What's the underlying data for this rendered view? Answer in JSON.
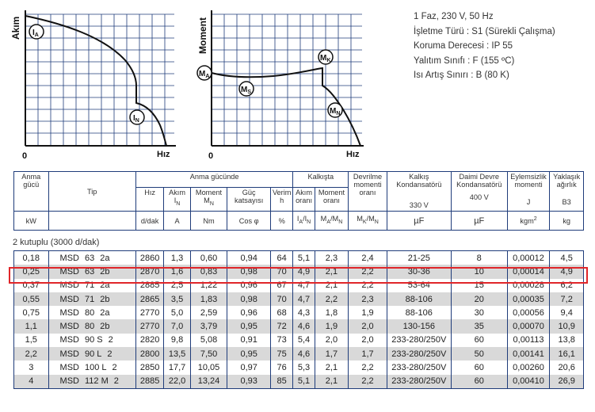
{
  "chart_left": {
    "y_axis": "Akım",
    "x_axis": "Hız",
    "origin": "0",
    "label_start": "I",
    "label_start_sub": "A",
    "label_nominal": "I",
    "label_nominal_sub": "N"
  },
  "chart_right": {
    "y_axis": "Moment",
    "x_axis": "Hız",
    "origin": "0",
    "label_start": "M",
    "label_start_sub": "A",
    "label_saddle": "M",
    "label_saddle_sub": "S",
    "label_breakdown": "M",
    "label_breakdown_sub": "K",
    "label_nominal": "M",
    "label_nominal_sub": "N"
  },
  "specs": {
    "line1": "1 Faz, 230 V, 50 Hz",
    "line2": "İşletme Türü : S1 (Sürekli Çalışma)",
    "line3": "Koruma Derecesi : IP 55",
    "line4": "Yalıtım Sınıfı : F (155 ºC)",
    "line5": "Isı Artış Sınırı : B (80 K)"
  },
  "header": {
    "anma_gucu": "Anma gücü",
    "tip": "Tip",
    "anma_gucunde": "Anma gücünde",
    "hiz": "Hız",
    "akim": "Akım",
    "akim_sym": "I",
    "akim_sub": "N",
    "moment": "Moment",
    "moment_sym": "M",
    "moment_sub": "N",
    "guc_katsayisi": "Güç katsayısı",
    "verim": "Verim",
    "verim_sym": "h",
    "kalkista": "Kalkışta",
    "akim_orani": "Akım oranı",
    "moment_orani": "Moment oranı",
    "devrilme": "Devrilme momenti oranı",
    "kalkis_kond": "Kalkış Kondansatörü",
    "kalkis_v": "330 V",
    "daimi_kond": "Daimi Devre Kondansatörü",
    "daimi_v": "400 V",
    "eylemsizlik": "Eylemsizlik momenti",
    "eylemsizlik_sym": "J",
    "yaklasik": "Yaklaşık ağırlık",
    "yaklasik_sym": "B3",
    "u_kw": "kW",
    "u_ddak": "d/dak",
    "u_a": "A",
    "u_nm": "Nm",
    "u_cos": "Cos φ",
    "u_pct": "%",
    "u_ia": "I",
    "u_ia_sub1": "A",
    "u_ia_mid": "/I",
    "u_ia_sub2": "N",
    "u_ma": "M",
    "u_ma_sub1": "A",
    "u_ma_mid": "/M",
    "u_ma_sub2": "N",
    "u_mk": "M",
    "u_mk_sub1": "K",
    "u_mk_mid": "/M",
    "u_mk_sub2": "N",
    "u_uf1": "µF",
    "u_uf2": "µF",
    "u_kgm": "kgm",
    "u_kgm_sup": "2",
    "u_kg": "kg"
  },
  "section_title": "2 kutuplu (3000 d/dak)",
  "rows": [
    [
      "0,18",
      "MSD",
      "63",
      "2a",
      "2860",
      "1,3",
      "0,60",
      "0,94",
      "64",
      "5,1",
      "2,3",
      "2,4",
      "21-25",
      "8",
      "0,00012",
      "4,5"
    ],
    [
      "0,25",
      "MSD",
      "63",
      "2b",
      "2870",
      "1,6",
      "0,83",
      "0,98",
      "70",
      "4,9",
      "2,1",
      "2,2",
      "30-36",
      "10",
      "0,00014",
      "4,9"
    ],
    [
      "0,37",
      "MSD",
      "71",
      "2a",
      "2885",
      "2,5",
      "1,22",
      "0,96",
      "67",
      "4,7",
      "2,1",
      "2,2",
      "53-64",
      "15",
      "0,00028",
      "6,2"
    ],
    [
      "0,55",
      "MSD",
      "71",
      "2b",
      "2865",
      "3,5",
      "1,83",
      "0,98",
      "70",
      "4,7",
      "2,2",
      "2,3",
      "88-106",
      "20",
      "0,00035",
      "7,2"
    ],
    [
      "0,75",
      "MSD",
      "80",
      "2a",
      "2770",
      "5,0",
      "2,59",
      "0,96",
      "68",
      "4,3",
      "1,8",
      "1,9",
      "88-106",
      "30",
      "0,00056",
      "9,4"
    ],
    [
      "1,1",
      "MSD",
      "80",
      "2b",
      "2770",
      "7,0",
      "3,79",
      "0,95",
      "72",
      "4,6",
      "1,9",
      "2,0",
      "130-156",
      "35",
      "0,00070",
      "10,9"
    ],
    [
      "1,5",
      "MSD",
      "90 S",
      "2",
      "2820",
      "9,8",
      "5,08",
      "0,91",
      "73",
      "5,4",
      "2,0",
      "2,0",
      "233-280/250V",
      "60",
      "0,00113",
      "13,8"
    ],
    [
      "2,2",
      "MSD",
      "90 L",
      "2",
      "2800",
      "13,5",
      "7,50",
      "0,95",
      "75",
      "4,6",
      "1,7",
      "1,7",
      "233-280/250V",
      "50",
      "0,00141",
      "16,1"
    ],
    [
      "3",
      "MSD",
      "100 L",
      "2",
      "2850",
      "17,7",
      "10,05",
      "0,97",
      "76",
      "5,3",
      "2,1",
      "2,2",
      "233-280/250V",
      "60",
      "0,00260",
      "20,6"
    ],
    [
      "4",
      "MSD",
      "112 M",
      "2",
      "2885",
      "22,0",
      "13,24",
      "0,93",
      "85",
      "5,1",
      "2,1",
      "2,2",
      "233-280/250V",
      "60",
      "0,00410",
      "26,9"
    ]
  ],
  "highlighted_row": 1,
  "colors": {
    "grid": "#1f3c7a",
    "highlight": "#e0262a",
    "alt_row": "#d9d9d9"
  }
}
